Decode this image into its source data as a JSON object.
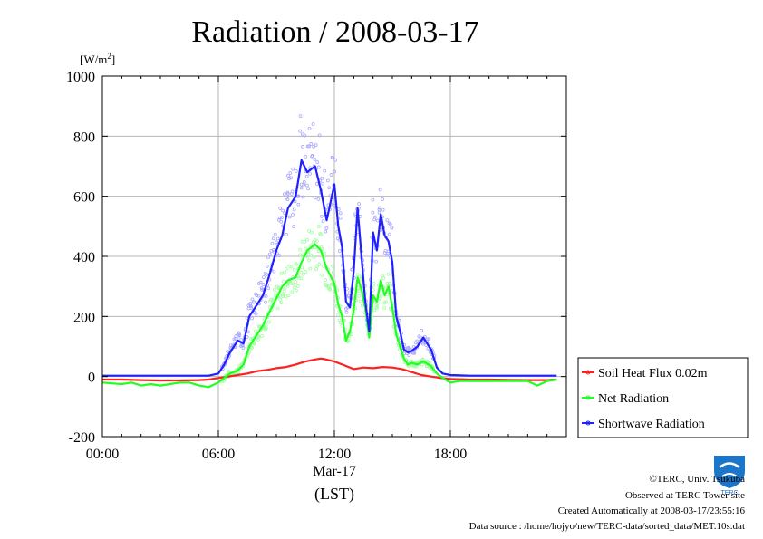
{
  "chart_data": {
    "type": "line",
    "title": "Radiation / 2008-03-17",
    "ylabel": "[W/m",
    "ylabel_sup": "2",
    "ylabel_close": "]",
    "ylim": [
      -200,
      1000
    ],
    "yticks": [
      "1000",
      "800",
      "600",
      "400",
      "200",
      "0",
      "-200"
    ],
    "yticks_values": [
      1000,
      800,
      600,
      400,
      200,
      0,
      -200
    ],
    "xlim": [
      0,
      24
    ],
    "xticks": [
      "00:00",
      "06:00",
      "12:00",
      "18:00"
    ],
    "xticks_values": [
      0,
      6,
      12,
      18
    ],
    "xdate": "Mar-17",
    "xlabel": "(LST)",
    "grid": true,
    "legend_position": "right",
    "series": [
      {
        "name": "Soil Heat Flux 0.02m",
        "color": "#ff2020",
        "x": [
          0,
          1,
          2,
          3,
          4,
          5,
          5.5,
          6,
          6.5,
          7,
          7.5,
          8,
          8.5,
          9,
          9.5,
          10,
          10.5,
          11,
          11.3,
          11.5,
          12,
          12.5,
          13,
          13.5,
          14,
          14.5,
          15,
          15.5,
          16,
          16.5,
          17,
          17.5,
          18,
          19,
          20,
          21,
          22,
          23,
          23.5
        ],
        "y": [
          -10,
          -10,
          -12,
          -13,
          -13,
          -12,
          -10,
          -5,
          0,
          5,
          10,
          18,
          22,
          28,
          32,
          40,
          50,
          57,
          60,
          58,
          50,
          38,
          25,
          30,
          28,
          32,
          30,
          25,
          15,
          5,
          0,
          -5,
          -8,
          -10,
          -10,
          -11,
          -12,
          -12,
          -10
        ]
      },
      {
        "name": "Net Radiation",
        "color": "#20ff20",
        "x": [
          0,
          1,
          1.5,
          2,
          2.5,
          3,
          3.5,
          4,
          4.5,
          5,
          5.5,
          6,
          6.3,
          6.6,
          7,
          7.3,
          7.6,
          8,
          8.3,
          8.6,
          9,
          9.3,
          9.6,
          10,
          10.3,
          10.6,
          11,
          11.3,
          11.6,
          12,
          12.2,
          12.4,
          12.6,
          12.8,
          13,
          13.2,
          13.4,
          13.6,
          13.8,
          14,
          14.2,
          14.4,
          14.6,
          14.8,
          15,
          15.2,
          15.4,
          15.6,
          15.8,
          16,
          16.3,
          16.6,
          17,
          17.3,
          17.6,
          18,
          18.5,
          19,
          20,
          21,
          22,
          22.5,
          23,
          23.5
        ],
        "y": [
          -20,
          -25,
          -20,
          -30,
          -25,
          -30,
          -25,
          -20,
          -20,
          -30,
          -35,
          -20,
          -5,
          10,
          20,
          40,
          100,
          140,
          170,
          210,
          260,
          300,
          320,
          330,
          380,
          420,
          440,
          420,
          360,
          310,
          240,
          200,
          120,
          150,
          220,
          330,
          290,
          230,
          130,
          270,
          250,
          320,
          270,
          300,
          230,
          140,
          100,
          60,
          40,
          45,
          40,
          50,
          35,
          10,
          -5,
          -20,
          -15,
          -15,
          -15,
          -15,
          -15,
          -30,
          -15,
          -10
        ]
      },
      {
        "name": "Shortwave Radiation",
        "color": "#2020ff",
        "x": [
          0,
          1,
          2,
          3,
          4,
          5,
          5.5,
          6,
          6.3,
          6.6,
          7,
          7.3,
          7.6,
          8,
          8.3,
          8.6,
          9,
          9.3,
          9.6,
          10,
          10.3,
          10.6,
          11,
          11.3,
          11.6,
          12,
          12.2,
          12.4,
          12.6,
          12.8,
          13,
          13.2,
          13.4,
          13.6,
          13.8,
          14,
          14.2,
          14.4,
          14.6,
          14.8,
          15,
          15.2,
          15.4,
          15.6,
          15.8,
          16,
          16.3,
          16.6,
          17,
          17.3,
          17.6,
          18,
          19,
          20,
          21,
          22,
          23,
          23.5
        ],
        "y": [
          3,
          3,
          3,
          3,
          3,
          3,
          3,
          10,
          40,
          80,
          120,
          110,
          200,
          240,
          270,
          330,
          420,
          470,
          560,
          600,
          720,
          680,
          700,
          620,
          520,
          640,
          500,
          430,
          250,
          230,
          350,
          560,
          400,
          250,
          150,
          480,
          420,
          540,
          470,
          450,
          380,
          200,
          150,
          90,
          80,
          85,
          100,
          130,
          90,
          30,
          10,
          5,
          3,
          3,
          3,
          3,
          3,
          3
        ]
      }
    ]
  },
  "credits": {
    "line1": "©TERC, Univ. Tsukuba",
    "line2": "Observed at TERC Tower site",
    "line3": "Created Automatically at 2008-03-17/23:55:16",
    "line4": "Data source : /home/hojyo/new/TERC-data/sorted_data/MET.10s.dat",
    "logo_text": "TERC"
  }
}
